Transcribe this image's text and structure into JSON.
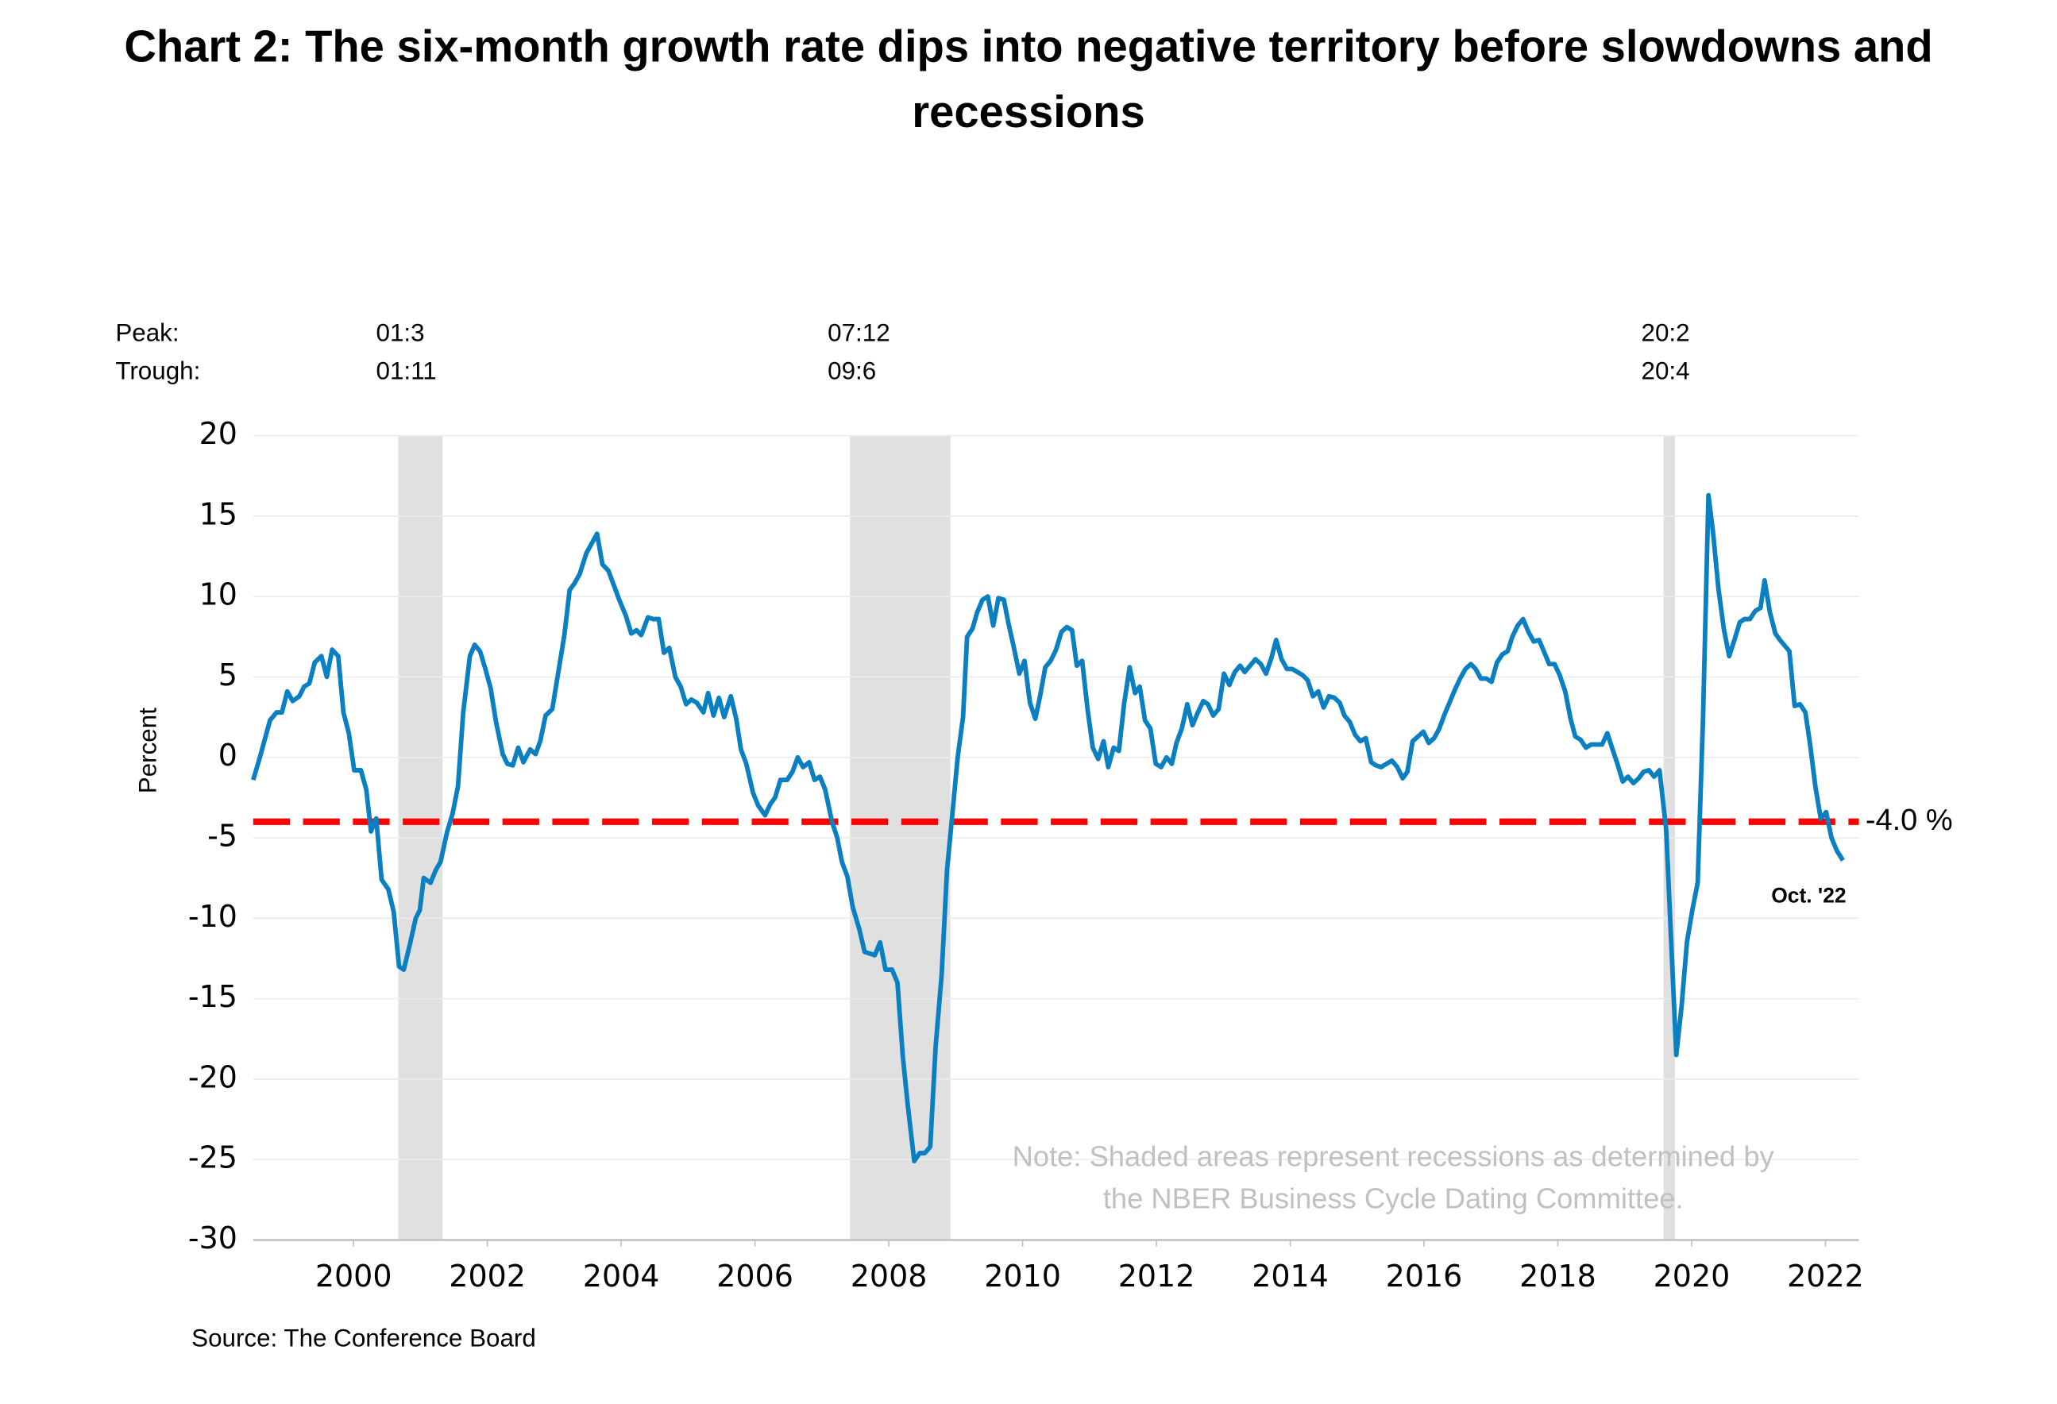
{
  "chart_data": {
    "type": "line",
    "title": [
      "Chart 2: The six-month growth rate dips into negative territory before slowdowns and",
      "recessions"
    ],
    "y_label": "Percent",
    "peak_label": "Peak:",
    "trough_label": "Trough:",
    "source": "Source: The Conference Board",
    "note": [
      "Note: Shaded areas represent recessions as determined by",
      "the NBER Business Cycle Dating Committee."
    ],
    "end_annotation": "Oct. '22",
    "color": "#0a7fc2",
    "recession_color": "#e0e0e0",
    "recessions": [
      {
        "start": 2001.17,
        "end": 2001.83,
        "peak": "01:3",
        "trough": "01:11"
      },
      {
        "start": 2007.92,
        "end": 2009.42,
        "peak": "07:12",
        "trough": "09:6"
      },
      {
        "start": 2020.08,
        "end": 2020.25,
        "peak": "20:2",
        "trough": "20:4"
      }
    ],
    "threshold": {
      "value": -4,
      "value_label": "-4.0 %",
      "color": "#ff0000"
    },
    "xlim": [
      1999,
      2023
    ],
    "ylim": [
      -30,
      20
    ],
    "yticks": [
      -30,
      -25,
      -20,
      -15,
      -10,
      -5,
      0,
      5,
      10,
      15,
      20
    ],
    "xticks": [
      {
        "value": 2000.5,
        "label": "2000"
      },
      {
        "value": 2002.5,
        "label": "2002"
      },
      {
        "value": 2004.5,
        "label": "2004"
      },
      {
        "value": 2006.5,
        "label": "2006"
      },
      {
        "value": 2008.5,
        "label": "2008"
      },
      {
        "value": 2010.5,
        "label": "2010"
      },
      {
        "value": 2012.5,
        "label": "2012"
      },
      {
        "value": 2014.5,
        "label": "2014"
      },
      {
        "value": 2016.5,
        "label": "2016"
      },
      {
        "value": 2018.5,
        "label": "2018"
      },
      {
        "value": 2020.5,
        "label": "2020"
      },
      {
        "value": 2022.5,
        "label": "2022"
      }
    ],
    "grid": true,
    "x": [
      1999.0,
      1999.1,
      1999.25,
      1999.35,
      1999.43,
      1999.51,
      1999.59,
      1999.69,
      1999.76,
      1999.84,
      1999.92,
      2000.02,
      2000.1,
      2000.18,
      2000.27,
      2000.35,
      2000.43,
      2000.51,
      2000.61,
      2000.69,
      2000.76,
      2000.84,
      2000.92,
      2001.02,
      2001.1,
      2001.18,
      2001.25,
      2001.35,
      2001.43,
      2001.49,
      2001.55,
      2001.65,
      2001.73,
      2001.8,
      2001.9,
      2001.98,
      2002.06,
      2002.14,
      2002.24,
      2002.31,
      2002.39,
      2002.47,
      2002.55,
      2002.63,
      2002.73,
      2002.8,
      2002.88,
      2002.96,
      2003.04,
      2003.14,
      2003.22,
      2003.29,
      2003.37,
      2003.47,
      2003.55,
      2003.65,
      2003.73,
      2003.8,
      2003.88,
      2003.98,
      2004.06,
      2004.14,
      2004.22,
      2004.31,
      2004.39,
      2004.47,
      2004.57,
      2004.65,
      2004.73,
      2004.8,
      2004.9,
      2004.98,
      2005.06,
      2005.14,
      2005.22,
      2005.31,
      2005.39,
      2005.47,
      2005.55,
      2005.63,
      2005.73,
      2005.8,
      2005.88,
      2005.96,
      2006.04,
      2006.14,
      2006.22,
      2006.29,
      2006.37,
      2006.47,
      2006.55,
      2006.65,
      2006.73,
      2006.8,
      2006.88,
      2006.98,
      2007.06,
      2007.14,
      2007.22,
      2007.31,
      2007.39,
      2007.47,
      2007.55,
      2007.65,
      2007.73,
      2007.8,
      2007.88,
      2007.96,
      2008.06,
      2008.14,
      2008.22,
      2008.29,
      2008.37,
      2008.45,
      2008.55,
      2008.63,
      2008.71,
      2008.78,
      2008.88,
      2008.96,
      2009.04,
      2009.12,
      2009.2,
      2009.29,
      2009.37,
      2009.45,
      2009.53,
      2009.61,
      2009.67,
      2009.75,
      2009.82,
      2009.9,
      2009.98,
      2010.06,
      2010.14,
      2010.22,
      2010.29,
      2010.37,
      2010.45,
      2010.53,
      2010.61,
      2010.69,
      2010.76,
      2010.84,
      2010.92,
      2011.0,
      2011.08,
      2011.16,
      2011.24,
      2011.31,
      2011.39,
      2011.47,
      2011.55,
      2011.63,
      2011.71,
      2011.78,
      2011.86,
      2011.94,
      2012.02,
      2012.1,
      2012.18,
      2012.25,
      2012.33,
      2012.41,
      2012.49,
      2012.57,
      2012.65,
      2012.73,
      2012.8,
      2012.88,
      2012.96,
      2013.04,
      2013.12,
      2013.2,
      2013.27,
      2013.35,
      2013.43,
      2013.51,
      2013.59,
      2013.67,
      2013.75,
      2013.82,
      2013.9,
      2013.98,
      2014.06,
      2014.14,
      2014.22,
      2014.29,
      2014.37,
      2014.45,
      2014.53,
      2014.61,
      2014.69,
      2014.76,
      2014.84,
      2014.92,
      2015.0,
      2015.08,
      2015.16,
      2015.24,
      2015.31,
      2015.39,
      2015.47,
      2015.55,
      2015.63,
      2015.71,
      2015.78,
      2015.86,
      2015.94,
      2016.02,
      2016.1,
      2016.18,
      2016.25,
      2016.33,
      2016.41,
      2016.49,
      2016.57,
      2016.65,
      2016.73,
      2016.8,
      2016.88,
      2016.96,
      2017.04,
      2017.12,
      2017.2,
      2017.27,
      2017.35,
      2017.43,
      2017.51,
      2017.59,
      2017.67,
      2017.75,
      2017.82,
      2017.9,
      2017.98,
      2018.06,
      2018.14,
      2018.22,
      2018.29,
      2018.37,
      2018.45,
      2018.53,
      2018.61,
      2018.69,
      2018.76,
      2018.84,
      2018.92,
      2019.0,
      2019.08,
      2019.16,
      2019.24,
      2019.31,
      2019.39,
      2019.47,
      2019.55,
      2019.63,
      2019.71,
      2019.78,
      2019.86,
      2019.94,
      2020.02,
      2020.12,
      2020.2,
      2020.27,
      2020.35,
      2020.43,
      2020.51,
      2020.59,
      2020.67,
      2020.75,
      2020.82,
      2020.9,
      2020.98,
      2021.06,
      2021.14,
      2021.22,
      2021.29,
      2021.37,
      2021.45,
      2021.53,
      2021.59,
      2021.67,
      2021.75,
      2021.82,
      2021.9,
      2021.96,
      2022.04,
      2022.12,
      2022.2,
      2022.27,
      2022.35,
      2022.43,
      2022.51,
      2022.59,
      2022.67,
      2022.76
    ],
    "values": [
      -1.4,
      0,
      2.3,
      2.8,
      2.8,
      4.1,
      3.5,
      3.8,
      4.4,
      4.6,
      5.9,
      6.3,
      5.0,
      6.7,
      6.3,
      2.8,
      1.5,
      -0.8,
      -0.8,
      -2.0,
      -4.6,
      -3.8,
      -7.6,
      -8.2,
      -9.6,
      -13.0,
      -13.2,
      -11.5,
      -10.0,
      -9.5,
      -7.5,
      -7.8,
      -7.0,
      -6.5,
      -4.6,
      -3.5,
      -1.8,
      2.8,
      6.3,
      7.0,
      6.6,
      5.5,
      4.3,
      2.2,
      0.2,
      -0.4,
      -0.5,
      0.6,
      -0.3,
      0.5,
      0.2,
      1.0,
      2.6,
      3.0,
      5.0,
      7.6,
      10.4,
      10.8,
      11.4,
      12.7,
      13.3,
      13.9,
      12.0,
      11.6,
      10.7,
      9.8,
      8.8,
      7.7,
      7.9,
      7.6,
      8.7,
      8.6,
      8.6,
      6.5,
      6.8,
      5.0,
      4.4,
      3.3,
      3.6,
      3.4,
      2.8,
      4.0,
      2.6,
      3.7,
      2.5,
      3.8,
      2.4,
      0.5,
      -0.4,
      -2.2,
      -3.0,
      -3.6,
      -2.9,
      -2.5,
      -1.4,
      -1.4,
      -0.9,
      0.0,
      -0.6,
      -0.3,
      -1.4,
      -1.2,
      -2.0,
      -4.0,
      -5.0,
      -6.5,
      -7.4,
      -9.3,
      -10.7,
      -12.1,
      -12.2,
      -12.3,
      -11.5,
      -13.2,
      -13.2,
      -14.0,
      -18.6,
      -21.5,
      -25.1,
      -24.6,
      -24.6,
      -24.2,
      -18.0,
      -13.5,
      -7.0,
      -3.5,
      0.0,
      2.5,
      7.5,
      8.0,
      9.0,
      9.8,
      10.0,
      8.2,
      9.9,
      9.8,
      8.3,
      6.8,
      5.2,
      6.0,
      3.4,
      2.4,
      3.8,
      5.6,
      6.0,
      6.7,
      7.8,
      8.1,
      7.9,
      5.7,
      6.0,
      3.0,
      0.6,
      -0.1,
      1.0,
      -0.6,
      0.6,
      0.4,
      3.4,
      5.6,
      4.0,
      4.4,
      2.3,
      1.8,
      -0.4,
      -0.6,
      0.0,
      -0.4,
      0.9,
      1.8,
      3.3,
      2.0,
      2.8,
      3.5,
      3.3,
      2.6,
      3.0,
      5.2,
      4.5,
      5.3,
      5.7,
      5.3,
      5.7,
      6.1,
      5.8,
      5.2,
      6.2,
      7.3,
      6.1,
      5.5,
      5.5,
      5.3,
      5.1,
      4.8,
      3.8,
      4.1,
      3.1,
      3.8,
      3.7,
      3.4,
      2.6,
      2.2,
      1.4,
      1.0,
      1.2,
      -0.3,
      -0.5,
      -0.6,
      -0.4,
      -0.2,
      -0.6,
      -1.3,
      -0.9,
      1.0,
      1.3,
      1.6,
      0.9,
      1.2,
      1.8,
      2.6,
      3.4,
      4.2,
      4.9,
      5.5,
      5.8,
      5.5,
      4.9,
      4.9,
      4.7,
      5.9,
      6.4,
      6.6,
      7.5,
      8.2,
      8.6,
      7.8,
      7.2,
      7.3,
      6.6,
      5.8,
      5.8,
      5.1,
      4.1,
      2.4,
      1.3,
      1.1,
      0.6,
      0.8,
      0.8,
      0.8,
      1.5,
      0.6,
      -0.4,
      -1.5,
      -1.2,
      -1.6,
      -1.3,
      -0.9,
      -0.8,
      -1.2,
      -0.8,
      -4.5,
      -12.0,
      -18.5,
      -15.5,
      -11.5,
      -9.5,
      -7.8,
      2.5,
      16.3,
      14.0,
      10.5,
      8.0,
      6.3,
      7.3,
      8.4,
      8.6,
      8.6,
      9.1,
      9.3,
      11.0,
      9.0,
      7.7,
      7.3,
      6.9,
      6.6,
      3.2,
      3.3,
      2.8,
      0.8,
      -1.8,
      -3.8,
      -3.4,
      -5.0,
      -5.8,
      -6.4
    ]
  }
}
